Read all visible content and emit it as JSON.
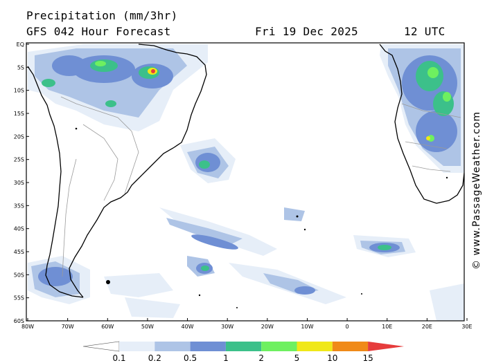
{
  "header": {
    "line1": "Precipitation (mm/3hr)",
    "model": "GFS 042 Hour Forecast",
    "date": "Fri 19 Dec 2025",
    "time": "12 UTC"
  },
  "credit": "© www.PassageWeather.com",
  "axes": {
    "lat_labels": [
      "EQ",
      "5S",
      "10S",
      "15S",
      "20S",
      "25S",
      "30S",
      "35S",
      "40S",
      "45S",
      "50S",
      "55S",
      "60S"
    ],
    "lon_labels": [
      "80W",
      "70W",
      "60W",
      "50W",
      "40W",
      "30W",
      "20W",
      "10W",
      "0",
      "10E",
      "20E",
      "30E"
    ]
  },
  "legend": {
    "labels": [
      "0.1",
      "0.2",
      "0.5",
      "1",
      "2",
      "5",
      "10",
      "15"
    ],
    "colors": [
      "#ffffff",
      "#e6eef8",
      "#aec4e6",
      "#6f8fd4",
      "#3cc08a",
      "#6ef060",
      "#f0e818",
      "#f08a18",
      "#e63c3c"
    ]
  },
  "colors": {
    "frame": "#000000",
    "coast": "#000000",
    "border": "#9a9a9a"
  }
}
